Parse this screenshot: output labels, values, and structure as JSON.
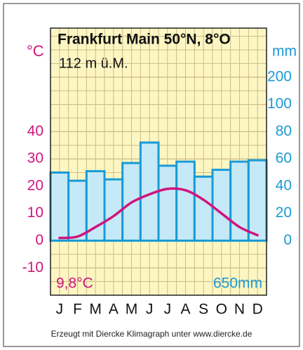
{
  "chart_data": {
    "type": "climate",
    "title": "Frankfurt Main 50°N, 8°O",
    "subtitle": "112 m ü.M.",
    "y_label": "°C",
    "y2_label": "mm",
    "categories": [
      "J",
      "F",
      "M",
      "A",
      "M",
      "J",
      "J",
      "A",
      "S",
      "O",
      "N",
      "D"
    ],
    "temperature": {
      "color": "#d0157e",
      "values": [
        1,
        1.5,
        5,
        9,
        14,
        17,
        19,
        18.5,
        15,
        10,
        5,
        2
      ]
    },
    "precipitation": {
      "color": "#1a9ad6",
      "fill": "#c6e9f7",
      "axis": "y2",
      "values": [
        50,
        44,
        51,
        45,
        57,
        72,
        55,
        58,
        47,
        52,
        58,
        59
      ]
    },
    "ylim": [
      -20,
      78
    ],
    "yticks": [
      -10,
      0,
      10,
      20,
      30,
      40
    ],
    "y2ticks": [
      0,
      20,
      40,
      60,
      80,
      100,
      200
    ],
    "mean_temperature": "9,8°C",
    "annual_precipitation": "650mm",
    "footer": "Erzeugt mit Diercke Klimagraph unter www.diercke.de"
  }
}
